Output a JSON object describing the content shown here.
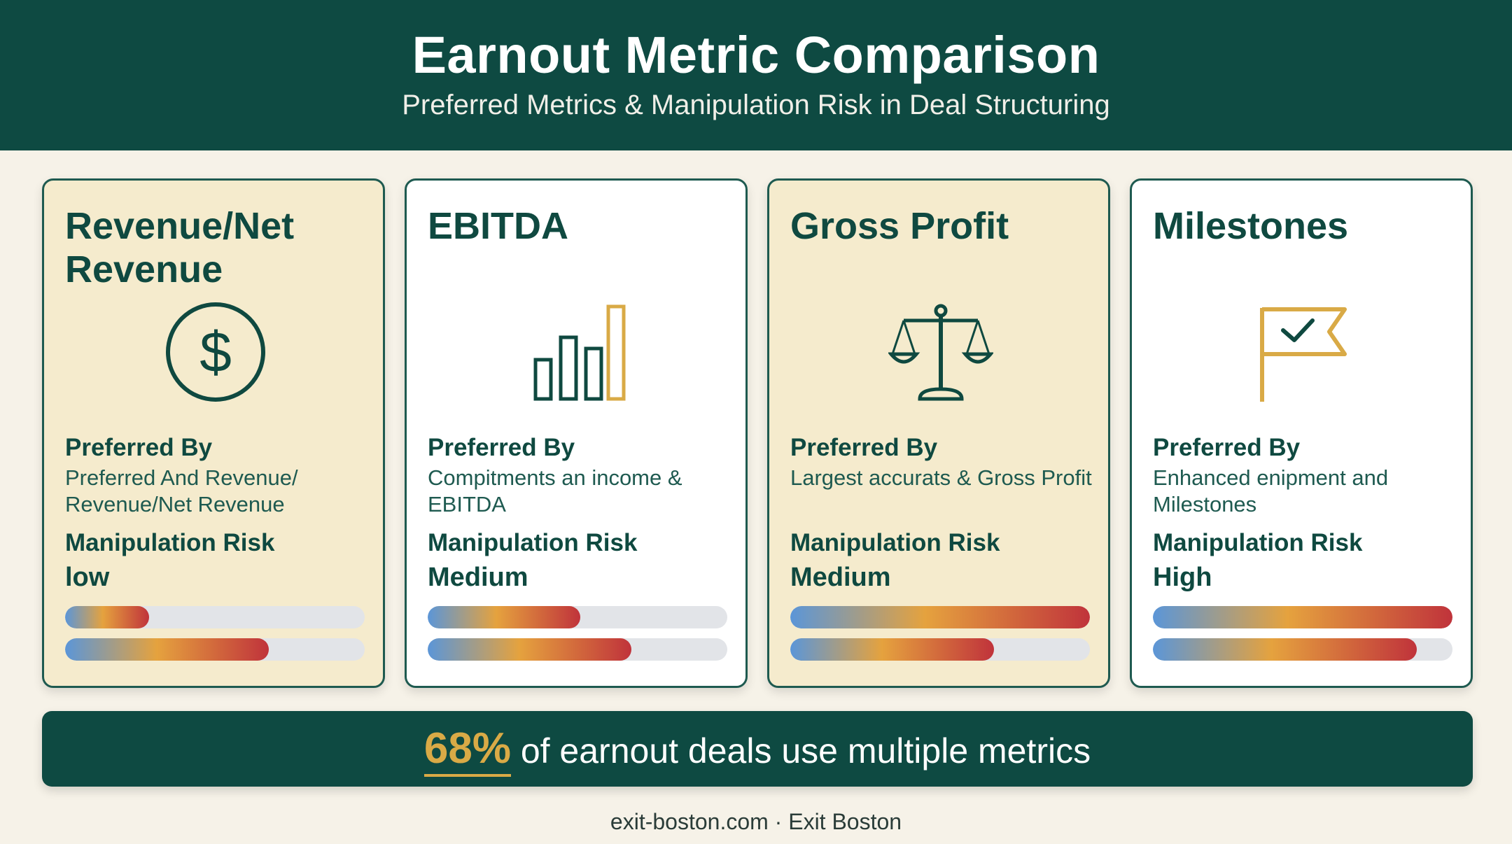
{
  "header": {
    "title": "Earnout Metric Comparison",
    "subtitle": "Preferred Metrics & Manipulation Risk in Deal Structuring"
  },
  "colors": {
    "header_bg": "#0e4a42",
    "card_tan": "#f5ebcd",
    "card_white": "#ffffff",
    "accent_gold": "#d9aa46",
    "bar_gradient": [
      "#5b96d8",
      "#e5a23e",
      "#c0333b"
    ],
    "bar_track": "#e2e4e8"
  },
  "cards": [
    {
      "title": "Revenue/Net Revenue",
      "icon": "dollar-circle-icon",
      "preferred_heading": "Preferred By",
      "preferred_text": "Preferred And Revenue/ Revenue/Net Revenue",
      "risk_heading": "Manipulation Risk",
      "risk_value": "low",
      "bar_1_fill_pct": 28,
      "bar_2_fill_pct": 68
    },
    {
      "title": "EBITDA",
      "icon": "bar-chart-icon",
      "preferred_heading": "Preferred By",
      "preferred_text": "Compitments an income & EBITDA",
      "risk_heading": "Manipulation Risk",
      "risk_value": "Medium",
      "bar_1_fill_pct": 51,
      "bar_2_fill_pct": 68
    },
    {
      "title": "Gross Profit",
      "icon": "balance-scale-icon",
      "preferred_heading": "Preferred By",
      "preferred_text": "Largest accurats & Gross Profit",
      "risk_heading": "Manipulation Risk",
      "risk_value": "Medium",
      "bar_1_fill_pct": 100,
      "bar_2_fill_pct": 68
    },
    {
      "title": "Milestones",
      "icon": "flag-check-icon",
      "preferred_heading": "Preferred By",
      "preferred_text": "Enhanced enipment and Milestones",
      "risk_heading": "Manipulation Risk",
      "risk_value": "High",
      "bar_1_fill_pct": 100,
      "bar_2_fill_pct": 88
    }
  ],
  "banner": {
    "stat": "68%",
    "text": " of earnout deals use multiple metrics"
  },
  "credit": "exit-boston.com · Exit Boston"
}
